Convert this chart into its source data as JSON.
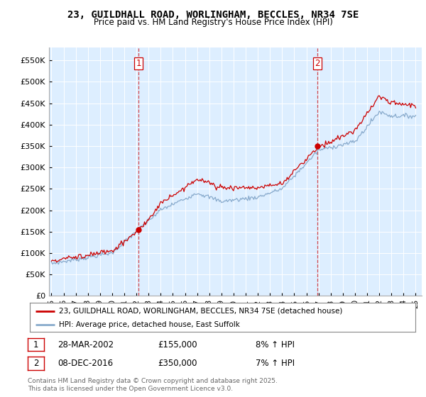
{
  "title": "23, GUILDHALL ROAD, WORLINGHAM, BECCLES, NR34 7SE",
  "subtitle": "Price paid vs. HM Land Registry's House Price Index (HPI)",
  "ylabel_ticks": [
    "£0",
    "£50K",
    "£100K",
    "£150K",
    "£200K",
    "£250K",
    "£300K",
    "£350K",
    "£400K",
    "£450K",
    "£500K",
    "£550K"
  ],
  "ytick_values": [
    0,
    50000,
    100000,
    150000,
    200000,
    250000,
    300000,
    350000,
    400000,
    450000,
    500000,
    550000
  ],
  "ylim": [
    0,
    580000
  ],
  "legend_line1": "23, GUILDHALL ROAD, WORLINGHAM, BECCLES, NR34 7SE (detached house)",
  "legend_line2": "HPI: Average price, detached house, East Suffolk",
  "sale1_date": "28-MAR-2002",
  "sale1_price": "£155,000",
  "sale1_hpi": "8% ↑ HPI",
  "sale2_date": "08-DEC-2016",
  "sale2_price": "£350,000",
  "sale2_hpi": "7% ↑ HPI",
  "footer": "Contains HM Land Registry data © Crown copyright and database right 2025.\nThis data is licensed under the Open Government Licence v3.0.",
  "line_color_red": "#cc0000",
  "line_color_blue": "#88aacc",
  "vline_color": "#cc0000",
  "bg_color": "#ffffff",
  "plot_bg_color": "#ddeeff",
  "grid_color": "#ffffff"
}
